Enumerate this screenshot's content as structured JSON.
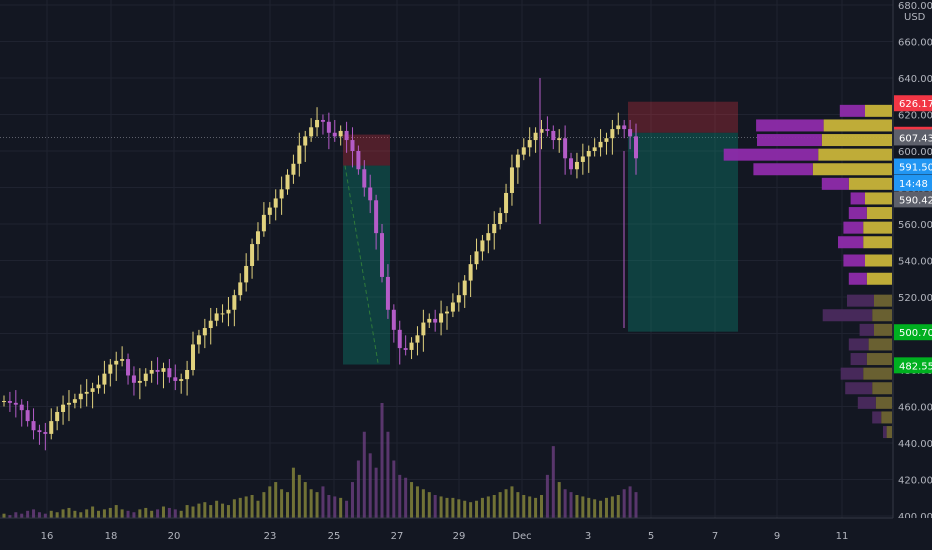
{
  "chart_data": {
    "type": "candlestick",
    "currency": "USD",
    "x_labels": [
      "16",
      "18",
      "20",
      "23",
      "25",
      "27",
      "29",
      "Dec",
      "3",
      "5",
      "7",
      "9",
      "11"
    ],
    "y_ticks": [
      400,
      420,
      440,
      460,
      480,
      500,
      520,
      540,
      560,
      580,
      600,
      620,
      640,
      660,
      680
    ],
    "ylim": [
      400,
      680
    ],
    "price_tags": [
      {
        "label": "626.17",
        "value": 626.17,
        "color": "#f23645"
      },
      {
        "label": "608.89",
        "value": 608.89,
        "color": "#f23645"
      },
      {
        "label": "607.43",
        "value": 607.43,
        "color": "#5d606b"
      },
      {
        "label": "591.50",
        "value": 591.5,
        "color": "#2196f3"
      },
      {
        "label": "14:48",
        "value": 582.5,
        "color": "#2196f3"
      },
      {
        "label": "590.42",
        "value": 573.5,
        "color": "#5d606b"
      },
      {
        "label": "500.70",
        "value": 500.7,
        "color": "#00b020"
      },
      {
        "label": "482.55",
        "value": 482.55,
        "color": "#00b020"
      }
    ],
    "closes": [
      463,
      462,
      461,
      458,
      452,
      447,
      446,
      445,
      452,
      457,
      461,
      462,
      464,
      467,
      468,
      470,
      472,
      478,
      483,
      485,
      486,
      477,
      473,
      474,
      478,
      480,
      479,
      481,
      476,
      474,
      475,
      480,
      494,
      499,
      503,
      507,
      511,
      511,
      513,
      521,
      528,
      537,
      549,
      556,
      565,
      569,
      574,
      579,
      587,
      593,
      603,
      608,
      613,
      617,
      616,
      610,
      608,
      611,
      606,
      600,
      590,
      580,
      573,
      555,
      531,
      513,
      502,
      492,
      491,
      495,
      499,
      506,
      508,
      506,
      511,
      512,
      517,
      521,
      529,
      538,
      545,
      551,
      555,
      560,
      566,
      577,
      591,
      598,
      602,
      606,
      610,
      612,
      611,
      606,
      607,
      596,
      590,
      594,
      597,
      600,
      602,
      605,
      607,
      612,
      614,
      612,
      608,
      596
    ],
    "volumes": [
      3,
      2,
      4,
      3,
      5,
      6,
      4,
      3,
      5,
      4,
      6,
      7,
      5,
      4,
      6,
      8,
      5,
      6,
      7,
      9,
      6,
      5,
      4,
      6,
      7,
      5,
      6,
      8,
      7,
      6,
      5,
      9,
      8,
      10,
      11,
      9,
      12,
      10,
      9,
      13,
      14,
      15,
      16,
      12,
      18,
      22,
      25,
      20,
      18,
      35,
      30,
      25,
      20,
      18,
      22,
      16,
      15,
      14,
      12,
      25,
      40,
      60,
      45,
      35,
      80,
      60,
      40,
      30,
      28,
      25,
      22,
      20,
      18,
      16,
      15,
      14,
      14,
      13,
      12,
      11,
      12,
      14,
      15,
      16,
      18,
      20,
      22,
      18,
      16,
      15,
      14,
      16,
      30,
      50,
      25,
      20,
      18,
      16,
      15,
      14,
      13,
      12,
      14,
      15,
      16,
      20,
      22,
      18
    ]
  },
  "positions": [
    {
      "kind": "short",
      "entry": 592,
      "stop": 609,
      "target": 483
    },
    {
      "kind": "short",
      "entry": 610,
      "stop": 627,
      "target": 501
    }
  ],
  "volume_profile": [
    {
      "price": 446,
      "a": 4,
      "b": 6
    },
    {
      "price": 454,
      "a": 10,
      "b": 12
    },
    {
      "price": 462,
      "a": 20,
      "b": 18
    },
    {
      "price": 470,
      "a": 30,
      "b": 22
    },
    {
      "price": 478,
      "a": 25,
      "b": 32
    },
    {
      "price": 486,
      "a": 18,
      "b": 28
    },
    {
      "price": 494,
      "a": 22,
      "b": 26
    },
    {
      "price": 502,
      "a": 16,
      "b": 20
    },
    {
      "price": 510,
      "a": 55,
      "b": 22
    },
    {
      "price": 518,
      "a": 30,
      "b": 20
    },
    {
      "price": 530,
      "a": 20,
      "b": 28
    },
    {
      "price": 540,
      "a": 24,
      "b": 30
    },
    {
      "price": 550,
      "a": 28,
      "b": 32
    },
    {
      "price": 558,
      "a": 22,
      "b": 32
    },
    {
      "price": 566,
      "a": 20,
      "b": 28
    },
    {
      "price": 574,
      "a": 16,
      "b": 30
    },
    {
      "price": 582,
      "a": 30,
      "b": 48
    },
    {
      "price": 590,
      "a": 66,
      "b": 88
    },
    {
      "price": 598,
      "a": 105,
      "b": 82
    },
    {
      "price": 606,
      "a": 72,
      "b": 78
    },
    {
      "price": 614,
      "a": 75,
      "b": 76
    },
    {
      "price": 622,
      "a": 28,
      "b": 30
    }
  ]
}
